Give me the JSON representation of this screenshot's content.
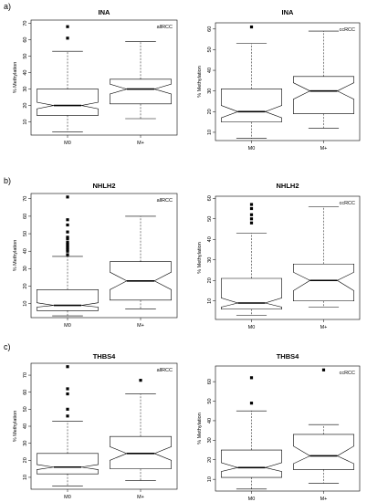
{
  "row_labels": [
    "a)",
    "b)",
    "c)"
  ],
  "chart_data": [
    {
      "type": "box",
      "title": "INA",
      "subset_label": "allRCC",
      "ylabel": "% Methylation",
      "categories": [
        "M0",
        "M+"
      ],
      "ylim": [
        2,
        72
      ],
      "yticks": [
        10,
        20,
        30,
        40,
        50,
        60,
        70
      ],
      "boxes": [
        {
          "name": "M0",
          "whisker_low": 4,
          "q1": 14,
          "median": 20,
          "q3": 30,
          "whisker_high": 53,
          "notch_low": 18,
          "notch_high": 22,
          "outliers": [
            61,
            68
          ]
        },
        {
          "name": "M+",
          "whisker_low": 12,
          "q1": 21,
          "median": 30,
          "q3": 36,
          "whisker_high": 59,
          "notch_low": 27,
          "notch_high": 33,
          "outliers": []
        }
      ]
    },
    {
      "type": "box",
      "title": "INA",
      "subset_label": "ccRCC",
      "ylabel": "% Methylation",
      "categories": [
        "M0",
        "M+"
      ],
      "ylim": [
        6,
        63
      ],
      "yticks": [
        10,
        20,
        30,
        40,
        50,
        60
      ],
      "boxes": [
        {
          "name": "M0",
          "whisker_low": 7,
          "q1": 15,
          "median": 20,
          "q3": 31,
          "whisker_high": 53,
          "notch_low": 17,
          "notch_high": 23,
          "outliers": [
            61
          ]
        },
        {
          "name": "M+",
          "whisker_low": 12,
          "q1": 19,
          "median": 30,
          "q3": 37,
          "whisker_high": 59,
          "notch_low": 26,
          "notch_high": 34,
          "outliers": []
        }
      ]
    },
    {
      "type": "box",
      "title": "NHLH2",
      "subset_label": "allRCC",
      "ylabel": "% Methylation",
      "categories": [
        "M0",
        "M+"
      ],
      "ylim": [
        2,
        73
      ],
      "yticks": [
        10,
        20,
        30,
        40,
        50,
        60,
        70
      ],
      "boxes": [
        {
          "name": "M0",
          "whisker_low": 3,
          "q1": 6,
          "median": 9,
          "q3": 18,
          "whisker_high": 37,
          "notch_low": 8,
          "notch_high": 10.5,
          "outliers": [
            38,
            40,
            41,
            42,
            43,
            44,
            45,
            47,
            48,
            51,
            55,
            58,
            71
          ]
        },
        {
          "name": "M+",
          "whisker_low": 7,
          "q1": 12,
          "median": 23,
          "q3": 34,
          "whisker_high": 60,
          "notch_low": 18,
          "notch_high": 28,
          "outliers": []
        }
      ]
    },
    {
      "type": "box",
      "title": "NHLH2",
      "subset_label": "ccRCC",
      "ylabel": "% Methylation",
      "categories": [
        "M0",
        "M+"
      ],
      "ylim": [
        1,
        61
      ],
      "yticks": [
        10,
        20,
        30,
        40,
        50,
        60
      ],
      "boxes": [
        {
          "name": "M0",
          "whisker_low": 3,
          "q1": 6,
          "median": 9,
          "q3": 21,
          "whisker_high": 43,
          "notch_low": 7,
          "notch_high": 11.5,
          "outliers": [
            48,
            50,
            52,
            55,
            57
          ]
        },
        {
          "name": "M+",
          "whisker_low": 7,
          "q1": 10,
          "median": 20,
          "q3": 28,
          "whisker_high": 56,
          "notch_low": 15,
          "notch_high": 24,
          "outliers": []
        }
      ]
    },
    {
      "type": "box",
      "title": "THBS4",
      "subset_label": "allRCC",
      "ylabel": "% Methylation",
      "categories": [
        "M0",
        "M+"
      ],
      "ylim": [
        3,
        77
      ],
      "yticks": [
        10,
        20,
        30,
        40,
        50,
        60,
        70
      ],
      "boxes": [
        {
          "name": "M0",
          "whisker_low": 5,
          "q1": 12,
          "median": 16,
          "q3": 24,
          "whisker_high": 43,
          "notch_low": 14.5,
          "notch_high": 17.5,
          "outliers": [
            46,
            50,
            59,
            62,
            75
          ]
        },
        {
          "name": "M+",
          "whisker_low": 8,
          "q1": 15,
          "median": 24,
          "q3": 34,
          "whisker_high": 59,
          "notch_low": 20,
          "notch_high": 28,
          "outliers": [
            67
          ]
        }
      ]
    },
    {
      "type": "box",
      "title": "THBS4",
      "subset_label": "ccRCC",
      "ylabel": "% Methylation",
      "categories": [
        "M0",
        "M+"
      ],
      "ylim": [
        4,
        68
      ],
      "yticks": [
        10,
        20,
        30,
        40,
        50,
        60
      ],
      "boxes": [
        {
          "name": "M0",
          "whisker_low": 5,
          "q1": 11,
          "median": 16,
          "q3": 25,
          "whisker_high": 45,
          "notch_low": 14,
          "notch_high": 18.5,
          "outliers": [
            49,
            62
          ]
        },
        {
          "name": "M+",
          "whisker_low": 8,
          "q1": 15,
          "median": 22,
          "q3": 33,
          "whisker_high": 38,
          "notch_low": 18,
          "notch_high": 27,
          "outliers": [
            66
          ]
        }
      ]
    }
  ]
}
